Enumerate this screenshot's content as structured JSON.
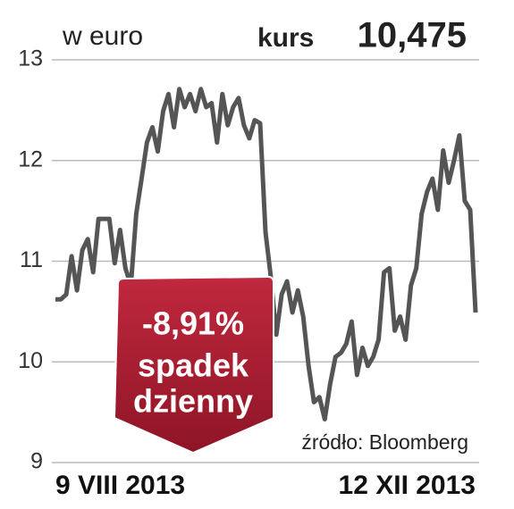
{
  "chart_data": {
    "type": "line",
    "unit_label": "w euro",
    "price_label": "kurs",
    "price_text": "10,475",
    "callout": [
      "-8,91%",
      "spadek",
      "dzienny"
    ],
    "source": "źródło: Bloomberg",
    "x": [
      "9 VIII 2013",
      null,
      null,
      null,
      null,
      null,
      null,
      null,
      null,
      null,
      null,
      null,
      null,
      null,
      null,
      null,
      null,
      null,
      null,
      null,
      null,
      null,
      null,
      null,
      null,
      null,
      null,
      null,
      null,
      null,
      null,
      null,
      null,
      null,
      null,
      null,
      null,
      null,
      null,
      null,
      null,
      null,
      null,
      null,
      null,
      null,
      null,
      null,
      null,
      null,
      null,
      null,
      null,
      null,
      null,
      null,
      null,
      null,
      null,
      null,
      null,
      null,
      null,
      null,
      null,
      null,
      null,
      null,
      null,
      null,
      null,
      null,
      null,
      null,
      null,
      null,
      null,
      null,
      "12 XII 2013"
    ],
    "values": [
      10.62,
      10.62,
      10.67,
      11.05,
      10.71,
      11.11,
      11.22,
      10.89,
      11.42,
      11.42,
      11.42,
      10.98,
      11.31,
      10.93,
      10.76,
      11.47,
      11.82,
      12.18,
      12.33,
      12.09,
      12.49,
      12.66,
      12.33,
      12.71,
      12.53,
      12.66,
      12.49,
      12.71,
      12.53,
      12.57,
      12.18,
      12.66,
      12.35,
      12.53,
      12.62,
      12.35,
      12.22,
      12.4,
      12.37,
      11.29,
      10.84,
      10.27,
      10.67,
      10.8,
      10.49,
      10.71,
      10.45,
      9.96,
      9.6,
      9.65,
      9.43,
      9.78,
      10.05,
      10.09,
      10.18,
      10.4,
      9.87,
      10.14,
      9.96,
      10.05,
      10.22,
      10.89,
      10.93,
      10.31,
      10.45,
      10.22,
      10.76,
      10.93,
      11.47,
      11.69,
      11.82,
      11.51,
      12.1,
      11.78,
      12.0,
      12.25,
      11.6,
      11.51,
      10.49
    ],
    "color": "#555555",
    "ylim": [
      9,
      13
    ],
    "yticks": [
      9,
      10,
      11,
      12,
      13
    ],
    "grid": true
  }
}
